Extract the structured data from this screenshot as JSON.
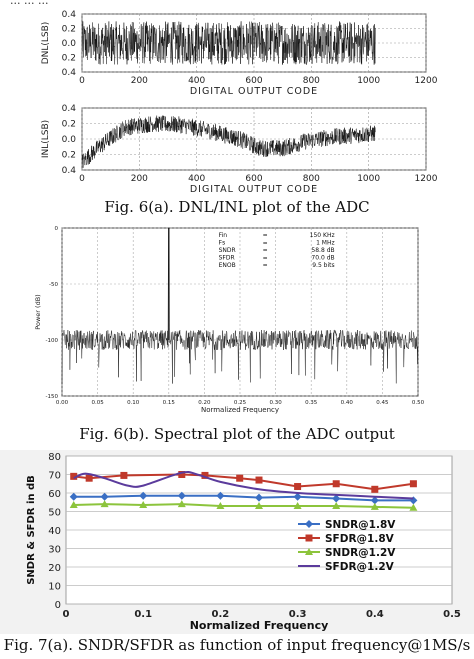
{
  "header_fragment": "... ... ...",
  "captions": {
    "fig6a": "Fig. 6(a). DNL/INL plot of the ADC",
    "fig6b": "Fig. 6(b). Spectral plot of the ADC output",
    "fig7a": "Fig. 7(a). SNDR/SFDR as function of input frequency@1MS/s"
  },
  "chart_data": [
    {
      "type": "line",
      "id": "dnl",
      "ylabel": "DNL(LSB)",
      "xlabel": "DIGITAL OUTPUT CODE",
      "xlim": [
        0,
        1200
      ],
      "ylim": [
        -0.4,
        0.4
      ],
      "xticks": [
        0,
        200,
        400,
        600,
        800,
        1000,
        1200
      ],
      "yticks": [
        -0.4,
        -0.2,
        0.0,
        0.2,
        0.4
      ],
      "ytick_labels": [
        "0.4",
        "0.2",
        "0.0",
        "0.2",
        "0.4"
      ],
      "grid": true,
      "data_range": [
        0,
        1023
      ],
      "amplitude_lsb": 0.3
    },
    {
      "type": "line",
      "id": "inl",
      "ylabel": "INL(LSB)",
      "xlabel": "DIGITAL OUTPUT CODE",
      "xlim": [
        0,
        1200
      ],
      "ylim": [
        -0.4,
        0.4
      ],
      "xticks": [
        0,
        200,
        400,
        600,
        800,
        1000,
        1200
      ],
      "yticks": [
        -0.4,
        -0.2,
        0.0,
        0.2,
        0.4
      ],
      "ytick_labels": [
        "0.4",
        "0.2",
        "0.0",
        "0.2",
        "0.4"
      ],
      "grid": true,
      "data_range": [
        0,
        1023
      ],
      "trend_x": [
        0,
        60,
        150,
        250,
        350,
        450,
        550,
        620,
        700,
        780,
        860,
        950,
        1023
      ],
      "trend_y": [
        -0.3,
        -0.1,
        0.15,
        0.2,
        0.18,
        0.1,
        0.0,
        -0.12,
        -0.12,
        -0.03,
        0.02,
        0.05,
        0.07
      ]
    },
    {
      "type": "line",
      "id": "spectrum",
      "ylabel": "Power (dB)",
      "xlabel": "Normalized Frequency",
      "xlim": [
        0,
        0.5
      ],
      "ylim": [
        -150,
        0
      ],
      "xticks": [
        0.0,
        0.05,
        0.1,
        0.15,
        0.2,
        0.25,
        0.3,
        0.35,
        0.4,
        0.45,
        0.5
      ],
      "xtick_labels": [
        "0.00",
        "0.05",
        "0.10",
        "0.15",
        "0.20",
        "0.25",
        "0.30",
        "0.35",
        "0.40",
        "0.45",
        "0.50"
      ],
      "yticks": [
        0,
        -50,
        -100,
        -150
      ],
      "grid": true,
      "noise_floor_db": -100,
      "peak": {
        "x": 0.15,
        "y": 0
      },
      "annotation": [
        {
          "name": "Fin",
          "eq": "=",
          "value": "150 KHz"
        },
        {
          "name": "Fs",
          "eq": "=",
          "value": "1 MHz"
        },
        {
          "name": "SNDR",
          "eq": "=",
          "value": "58.8 dB"
        },
        {
          "name": "SFDR",
          "eq": "=",
          "value": "70.0 dB"
        },
        {
          "name": "ENOB",
          "eq": "=",
          "value": "9.5 bits"
        }
      ]
    },
    {
      "type": "line",
      "id": "sndr_sfdr",
      "ylabel": "SNDR & SFDR in dB",
      "xlabel": "Normalized Frequency",
      "xlim": [
        0,
        0.5
      ],
      "ylim": [
        0,
        80
      ],
      "xticks": [
        0,
        0.1,
        0.2,
        0.3,
        0.4,
        0.5
      ],
      "xtick_labels": [
        "0",
        "0.1",
        "0.2",
        "0.3",
        "0.4",
        "0.5"
      ],
      "yticks": [
        0,
        10,
        20,
        30,
        40,
        50,
        60,
        70,
        80
      ],
      "grid": true,
      "legend": "inside-right",
      "series": [
        {
          "name": "SNDR@1.8V",
          "color": "#3a6fc4",
          "marker": "diamond",
          "x": [
            0.01,
            0.05,
            0.1,
            0.15,
            0.2,
            0.25,
            0.3,
            0.35,
            0.4,
            0.45
          ],
          "y": [
            58,
            58,
            58.5,
            58.5,
            58.5,
            57.5,
            58,
            57,
            56,
            56
          ]
        },
        {
          "name": "SFDR@1.8V",
          "color": "#c0392b",
          "marker": "square",
          "x": [
            0.01,
            0.03,
            0.075,
            0.15,
            0.18,
            0.225,
            0.25,
            0.3,
            0.35,
            0.4,
            0.45
          ],
          "y": [
            69,
            68,
            69.5,
            70,
            69.5,
            68,
            67,
            63.5,
            65,
            62,
            65
          ]
        },
        {
          "name": "SNDR@1.2V",
          "color": "#8cc43c",
          "marker": "triangle",
          "x": [
            0.01,
            0.05,
            0.1,
            0.15,
            0.2,
            0.25,
            0.3,
            0.35,
            0.4,
            0.45
          ],
          "y": [
            53.5,
            54,
            53.5,
            54,
            53,
            53,
            53,
            53,
            52.5,
            52
          ]
        },
        {
          "name": "SFDR@1.2V",
          "color": "#5b3b9c",
          "marker": "none",
          "x": [
            0.01,
            0.025,
            0.05,
            0.08,
            0.1,
            0.15,
            0.17,
            0.2,
            0.25,
            0.3,
            0.35,
            0.4,
            0.45
          ],
          "y": [
            68,
            70.5,
            68,
            64,
            64,
            71,
            70,
            66,
            62,
            60,
            59,
            58,
            57
          ]
        }
      ]
    }
  ]
}
